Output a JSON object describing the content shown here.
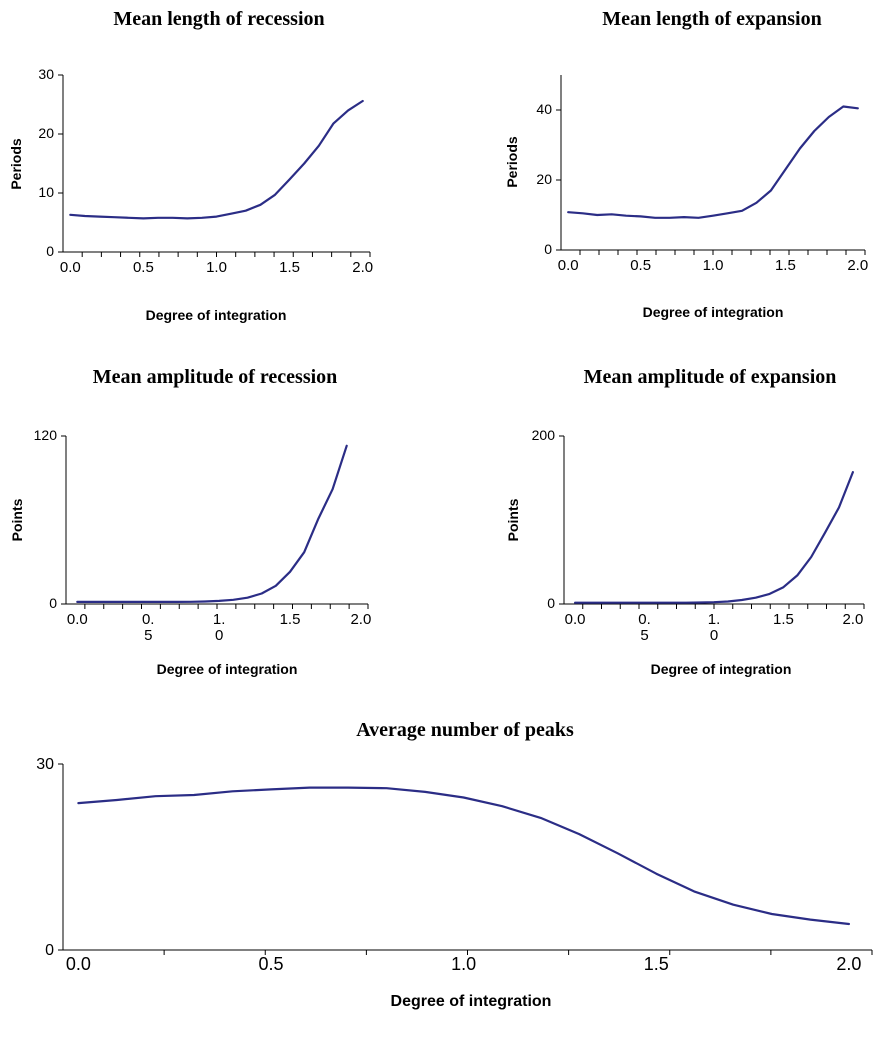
{
  "chart_data": [
    {
      "type": "line",
      "title": "Mean length of recession",
      "xlabel": "Degree of integration",
      "ylabel": "Periods",
      "xlim": [
        -0.05,
        2.05
      ],
      "ylim": [
        0,
        30
      ],
      "yticks": [
        "0",
        "10",
        "20",
        "30"
      ],
      "xtick_labels": [
        {
          "x": 0.0,
          "lines": [
            "0.0"
          ]
        },
        {
          "x": 0.5,
          "lines": [
            "0.5"
          ]
        },
        {
          "x": 1.0,
          "lines": [
            "1.0"
          ]
        },
        {
          "x": 1.5,
          "lines": [
            "1.5"
          ]
        },
        {
          "x": 2.0,
          "lines": [
            "2.0"
          ]
        }
      ],
      "x": [
        0.0,
        0.1,
        0.2,
        0.3,
        0.4,
        0.5,
        0.6,
        0.7,
        0.8,
        0.9,
        1.0,
        1.1,
        1.2,
        1.3,
        1.4,
        1.5,
        1.6,
        1.7,
        1.8,
        1.9,
        2.0
      ],
      "series": [
        {
          "values": [
            6.3,
            6.1,
            6.0,
            5.9,
            5.8,
            5.7,
            5.8,
            5.8,
            5.7,
            5.8,
            6.0,
            6.5,
            7.0,
            8.0,
            9.7,
            12.3,
            15.0,
            18.0,
            21.8,
            24.0,
            25.6
          ]
        }
      ]
    },
    {
      "type": "line",
      "title": "Mean length of expansion",
      "xlabel": "Degree of integration",
      "ylabel": "Periods",
      "xlim": [
        -0.05,
        2.05
      ],
      "ylim": [
        0,
        50
      ],
      "yticks": [
        "0",
        "20",
        "40"
      ],
      "xtick_labels": [
        {
          "x": 0.0,
          "lines": [
            "0.0"
          ]
        },
        {
          "x": 0.5,
          "lines": [
            "0.5"
          ]
        },
        {
          "x": 1.0,
          "lines": [
            "1.0"
          ]
        },
        {
          "x": 1.5,
          "lines": [
            "1.5"
          ]
        },
        {
          "x": 2.0,
          "lines": [
            "2.0"
          ]
        }
      ],
      "x": [
        0.0,
        0.1,
        0.2,
        0.3,
        0.4,
        0.5,
        0.6,
        0.7,
        0.8,
        0.9,
        1.0,
        1.1,
        1.2,
        1.3,
        1.4,
        1.5,
        1.6,
        1.7,
        1.8,
        1.9,
        2.0
      ],
      "series": [
        {
          "values": [
            10.8,
            10.5,
            10.0,
            10.2,
            9.8,
            9.6,
            9.2,
            9.2,
            9.4,
            9.2,
            9.8,
            10.5,
            11.2,
            13.5,
            17.0,
            23.0,
            29.0,
            34.0,
            38.0,
            41.0,
            40.5
          ]
        }
      ]
    },
    {
      "type": "line",
      "title": "Mean amplitude of recession",
      "xlabel": "Degree of integration",
      "ylabel": "Points",
      "xlim": [
        -0.08,
        2.05
      ],
      "ylim": [
        0,
        120
      ],
      "yticks": [
        "0",
        "120"
      ],
      "xtick_labels": [
        {
          "x": 0.0,
          "lines": [
            "0.0"
          ]
        },
        {
          "x": 0.5,
          "lines": [
            "0.",
            "5"
          ]
        },
        {
          "x": 1.0,
          "lines": [
            "1.",
            "0"
          ]
        },
        {
          "x": 1.5,
          "lines": [
            "1.5"
          ]
        },
        {
          "x": 2.0,
          "lines": [
            "2.0"
          ]
        }
      ],
      "x": [
        0.0,
        0.1,
        0.2,
        0.3,
        0.4,
        0.5,
        0.6,
        0.7,
        0.8,
        0.9,
        1.0,
        1.1,
        1.2,
        1.3,
        1.4,
        1.5,
        1.6,
        1.7,
        1.8,
        1.9
      ],
      "series": [
        {
          "values": [
            1.5,
            1.5,
            1.5,
            1.5,
            1.5,
            1.5,
            1.5,
            1.5,
            1.6,
            1.8,
            2.2,
            3.0,
            4.5,
            7.5,
            13.0,
            23.0,
            37.0,
            61.0,
            82.0,
            113.0
          ]
        }
      ]
    },
    {
      "type": "line",
      "title": "Mean amplitude of expansion",
      "xlabel": "Degree of integration",
      "ylabel": "Points",
      "xlim": [
        -0.08,
        2.08
      ],
      "ylim": [
        0,
        200
      ],
      "yticks": [
        "0",
        "200"
      ],
      "xtick_labels": [
        {
          "x": 0.0,
          "lines": [
            "0.0"
          ]
        },
        {
          "x": 0.5,
          "lines": [
            "0.",
            "5"
          ]
        },
        {
          "x": 1.0,
          "lines": [
            "1.",
            "0"
          ]
        },
        {
          "x": 1.5,
          "lines": [
            "1.5"
          ]
        },
        {
          "x": 2.0,
          "lines": [
            "2.0"
          ]
        }
      ],
      "x": [
        0.0,
        0.1,
        0.2,
        0.3,
        0.4,
        0.5,
        0.6,
        0.7,
        0.8,
        0.9,
        1.0,
        1.1,
        1.2,
        1.3,
        1.4,
        1.5,
        1.6,
        1.7,
        1.8,
        1.9,
        2.0
      ],
      "series": [
        {
          "values": [
            1.5,
            1.5,
            1.5,
            1.5,
            1.5,
            1.5,
            1.5,
            1.5,
            1.6,
            1.8,
            2.2,
            3.0,
            4.8,
            7.5,
            12.0,
            20.0,
            34.0,
            56.0,
            85.0,
            115.0,
            157.0
          ]
        }
      ]
    },
    {
      "type": "line",
      "title": "Average number of peaks",
      "xlabel": "Degree of integration",
      "ylabel": "",
      "xlim": [
        -0.04,
        2.06
      ],
      "ylim": [
        0,
        30
      ],
      "yticks": [
        "0",
        "30"
      ],
      "xtick_labels": [
        {
          "x": 0.0,
          "lines": [
            "0.0"
          ]
        },
        {
          "x": 0.5,
          "lines": [
            "0.5"
          ]
        },
        {
          "x": 1.0,
          "lines": [
            "1.0"
          ]
        },
        {
          "x": 1.5,
          "lines": [
            "1.5"
          ]
        },
        {
          "x": 2.0,
          "lines": [
            "2.0"
          ]
        }
      ],
      "x": [
        0.0,
        0.1,
        0.2,
        0.3,
        0.4,
        0.5,
        0.6,
        0.7,
        0.8,
        0.9,
        1.0,
        1.1,
        1.2,
        1.3,
        1.4,
        1.5,
        1.6,
        1.7,
        1.8,
        1.9,
        2.0
      ],
      "series": [
        {
          "values": [
            23.7,
            24.2,
            24.8,
            25.0,
            25.6,
            25.9,
            26.2,
            26.2,
            26.1,
            25.5,
            24.6,
            23.2,
            21.3,
            18.7,
            15.6,
            12.3,
            9.4,
            7.3,
            5.8,
            4.9,
            4.2
          ]
        }
      ]
    }
  ],
  "style": {
    "line_color": "#2b2d86",
    "axis_color": "#000000"
  }
}
